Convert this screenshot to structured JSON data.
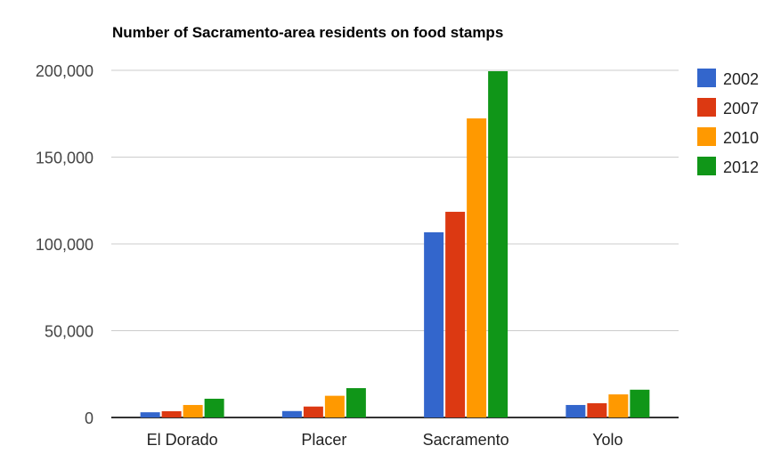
{
  "chart_data": {
    "type": "bar",
    "title": "Number of Sacramento-area residents on food stamps",
    "xlabel": "",
    "ylabel": "",
    "ylim": [
      0,
      200000
    ],
    "yticks": [
      0,
      50000,
      100000,
      150000,
      200000
    ],
    "ytick_labels": [
      "0",
      "50,000",
      "100,000",
      "150,000",
      "200,000"
    ],
    "grid": true,
    "legend_position": "right",
    "categories": [
      "El Dorado",
      "Placer",
      "Sacramento",
      "Yolo"
    ],
    "series": [
      {
        "name": "2002",
        "color": "#3366cc",
        "values": [
          3000,
          3700,
          106700,
          7200
        ]
      },
      {
        "name": "2007",
        "color": "#dc3912",
        "values": [
          3600,
          6300,
          118500,
          8200
        ]
      },
      {
        "name": "2010",
        "color": "#ff9900",
        "values": [
          7200,
          12500,
          172300,
          13300
        ]
      },
      {
        "name": "2012",
        "color": "#109618",
        "values": [
          10800,
          16900,
          199500,
          16000
        ]
      }
    ]
  }
}
